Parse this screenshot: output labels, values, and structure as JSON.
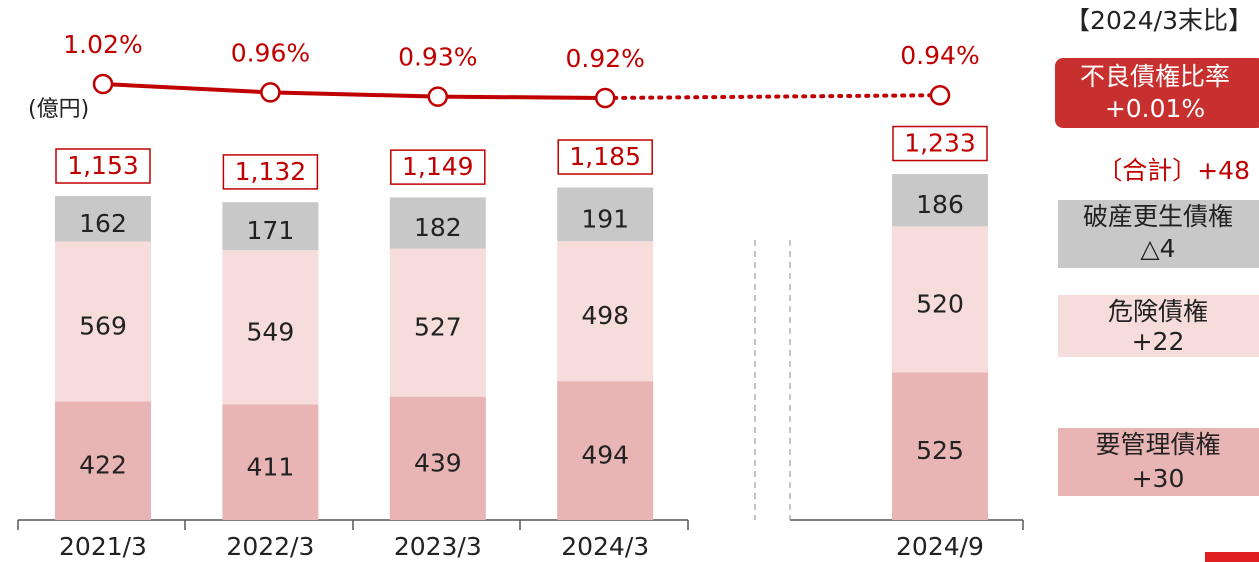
{
  "chart_data": {
    "type": "stacked-bar-line",
    "unit_label": "(億円)",
    "categories": [
      "2021/3",
      "2022/3",
      "2023/3",
      "2024/3",
      null,
      "2024/9"
    ],
    "series": [
      {
        "name": "要管理債権",
        "color": "#e8b4b4",
        "values": [
          422,
          411,
          439,
          494,
          null,
          525
        ]
      },
      {
        "name": "危険債権",
        "color": "#f7dcdc",
        "values": [
          569,
          549,
          527,
          498,
          null,
          520
        ]
      },
      {
        "name": "破産更生債権",
        "color": "#c8c8c8",
        "values": [
          162,
          171,
          182,
          191,
          null,
          186
        ]
      }
    ],
    "totals": {
      "values": [
        1153,
        1132,
        1149,
        1185,
        null,
        1233
      ],
      "value_labels": [
        "1,153",
        "1,132",
        "1,149",
        "1,185",
        null,
        "1,233"
      ]
    },
    "ratio": {
      "name": "不良債権比率",
      "color": "#c00000",
      "values": [
        1.02,
        0.96,
        0.93,
        0.92,
        null,
        0.94
      ],
      "value_labels": [
        "1.02%",
        "0.96%",
        "0.93%",
        "0.92%",
        null,
        "0.94%"
      ]
    },
    "comparison": {
      "title": "【2024/3末比】",
      "ratio_name": "不良債権比率",
      "ratio_change": "+0.01%",
      "total": "〔合計〕+48",
      "items": [
        {
          "name": "破産更生債権",
          "change": "△4"
        },
        {
          "name": "危険債権",
          "change": "+22"
        },
        {
          "name": "要管理債権",
          "change": "+30"
        }
      ]
    }
  }
}
